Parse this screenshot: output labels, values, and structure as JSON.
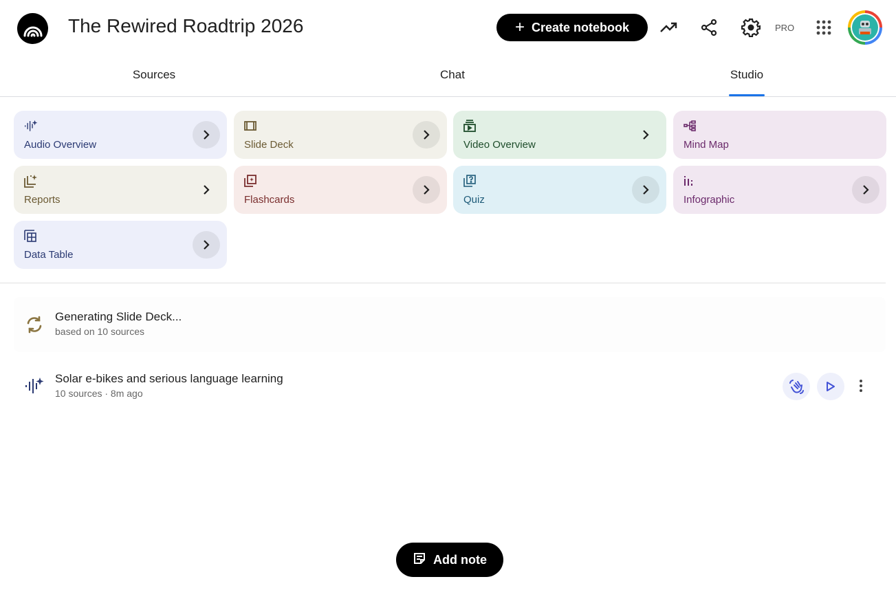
{
  "header": {
    "title": "The Rewired Roadtrip 2026",
    "create_label": "Create notebook",
    "pro_label": "PRO",
    "icons": [
      "notebooklm-logo-icon",
      "plus-icon",
      "analytics-icon",
      "share-icon",
      "settings-icon",
      "apps-grid-icon",
      "avatar"
    ]
  },
  "tabs": [
    {
      "label": "Sources"
    },
    {
      "label": "Chat"
    },
    {
      "label": "Studio",
      "active": true
    }
  ],
  "accent": "#1a73e8",
  "studio_cards": [
    {
      "label": "Audio Overview",
      "icon": "audio-waveform-sparkle-icon",
      "bg": "#edeffa",
      "fg": "#2b3a73"
    },
    {
      "label": "Slide Deck",
      "icon": "slides-icon",
      "bg": "#f2f1ea",
      "fg": "#6b5a33"
    },
    {
      "label": "Video Overview",
      "icon": "video-icon",
      "bg": "#e2f0e5",
      "fg": "#1e4d2b"
    },
    {
      "label": "Mind Map",
      "icon": "mind-map-icon",
      "bg": "#f1e7f1",
      "fg": "#6b2a6b"
    },
    {
      "label": "Reports",
      "icon": "reports-icon",
      "bg": "#f2f1ea",
      "fg": "#6b5a33"
    },
    {
      "label": "Flashcards",
      "icon": "flashcards-icon",
      "bg": "#f7ebe9",
      "fg": "#7a2e2e"
    },
    {
      "label": "Quiz",
      "icon": "quiz-icon",
      "bg": "#dff0f6",
      "fg": "#1d5a78"
    },
    {
      "label": "Infographic",
      "icon": "infographic-icon",
      "bg": "#f1e7f1",
      "fg": "#6b2a6b"
    },
    {
      "label": "Data Table",
      "icon": "data-table-icon",
      "bg": "#edeffa",
      "fg": "#2b3a73"
    }
  ],
  "outputs": [
    {
      "title": "Generating Slide Deck...",
      "subtitle": "based on 10 sources",
      "icon": "sync-icon"
    },
    {
      "title": "Solar e-bikes and serious language learning",
      "subtitle": "10 sources · 8m ago",
      "icon": "audio-waveform-sparkle-icon"
    }
  ],
  "add_note_label": "Add note"
}
